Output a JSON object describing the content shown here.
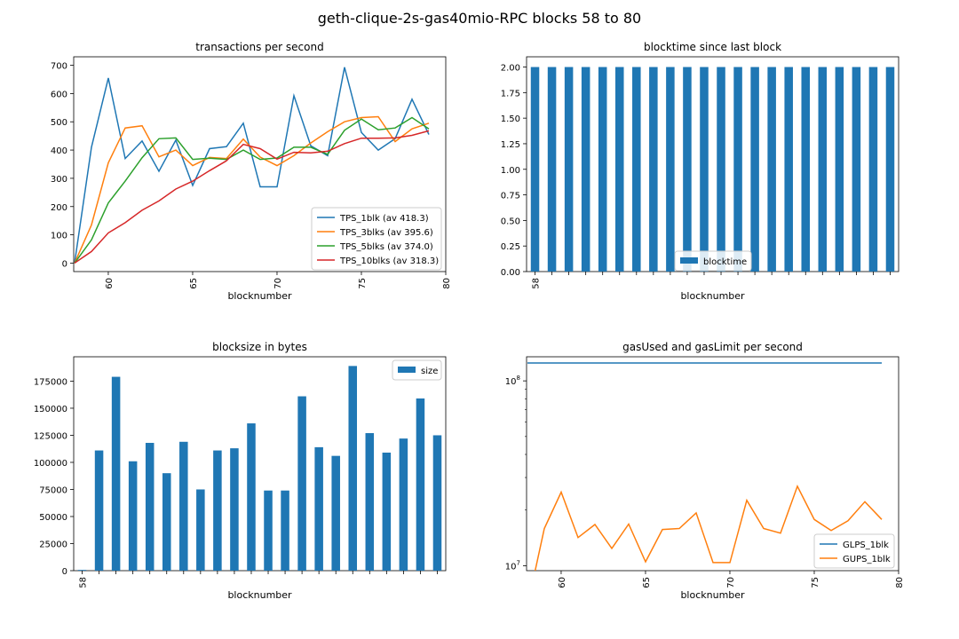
{
  "suptitle": "geth-clique-2s-gas40mio-RPC blocks 58 to 80",
  "chart_data": [
    {
      "type": "line",
      "title": "transactions per second",
      "xlabel": "blocknumber",
      "ylabel": "",
      "xlim": [
        57.95,
        80
      ],
      "ylim": [
        -30,
        730
      ],
      "xticks": [
        60,
        65,
        70,
        75,
        80
      ],
      "yticks": [
        0,
        100,
        200,
        300,
        400,
        500,
        600,
        700
      ],
      "x": [
        58,
        59,
        60,
        61,
        62,
        63,
        64,
        65,
        66,
        67,
        68,
        69,
        70,
        71,
        72,
        73,
        74,
        75,
        76,
        77,
        78,
        79
      ],
      "legend_position": "lower-right",
      "series": [
        {
          "name": "TPS_1blk (av 418.3)",
          "color": "#1f77b4",
          "values": [
            0,
            410,
            655,
            370,
            432,
            325,
            435,
            275,
            405,
            412,
            495,
            270,
            270,
            592,
            415,
            380,
            693,
            462,
            400,
            440,
            580,
            455
          ]
        },
        {
          "name": "TPS_3blks (av 395.6)",
          "color": "#ff7f0e",
          "values": [
            0,
            135,
            355,
            478,
            486,
            376,
            400,
            345,
            374,
            370,
            439,
            375,
            345,
            380,
            425,
            465,
            500,
            515,
            518,
            430,
            475,
            495
          ]
        },
        {
          "name": "TPS_5blks (av 374.0)",
          "color": "#2ca02c",
          "values": [
            0,
            82,
            213,
            290,
            373,
            440,
            443,
            367,
            371,
            367,
            400,
            367,
            372,
            410,
            410,
            385,
            470,
            510,
            472,
            478,
            515,
            475
          ]
        },
        {
          "name": "TPS_10blks (av 318.3)",
          "color": "#d62728",
          "values": [
            0,
            41,
            107,
            143,
            187,
            220,
            262,
            290,
            327,
            362,
            420,
            405,
            368,
            392,
            390,
            396,
            423,
            442,
            442,
            443,
            452,
            468
          ]
        }
      ]
    },
    {
      "type": "bar",
      "title": "blocktime since last block",
      "xlabel": "blocknumber",
      "ylabel": "",
      "ylim": [
        0,
        2.1
      ],
      "yticks": [
        0.0,
        0.25,
        0.5,
        0.75,
        1.0,
        1.25,
        1.5,
        1.75,
        2.0
      ],
      "ytick_labels": [
        "0.00",
        "0.25",
        "0.50",
        "0.75",
        "1.00",
        "1.25",
        "1.50",
        "1.75",
        "2.00"
      ],
      "categories": [
        "58",
        "",
        "",
        "",
        "",
        "",
        "",
        "",
        "",
        "",
        "",
        "",
        "",
        "",
        "",
        "",
        "",
        "",
        "",
        "",
        "",
        ""
      ],
      "legend_position": "lower-center",
      "series": [
        {
          "name": "blocktime",
          "color": "#1f77b4",
          "values": [
            2,
            2,
            2,
            2,
            2,
            2,
            2,
            2,
            2,
            2,
            2,
            2,
            2,
            2,
            2,
            2,
            2,
            2,
            2,
            2,
            2,
            2
          ]
        }
      ]
    },
    {
      "type": "bar",
      "title": "blocksize in bytes",
      "xlabel": "blocknumber",
      "ylabel": "",
      "ylim": [
        0,
        197500
      ],
      "yticks": [
        0,
        25000,
        50000,
        75000,
        100000,
        125000,
        150000,
        175000
      ],
      "categories": [
        "58",
        "",
        "",
        "",
        "",
        "",
        "",
        "",
        "",
        "",
        "",
        "",
        "",
        "",
        "",
        "",
        "",
        "",
        "",
        "",
        "",
        ""
      ],
      "legend_position": "upper-right",
      "series": [
        {
          "name": "size",
          "color": "#1f77b4",
          "values": [
            700,
            111000,
            179000,
            101000,
            118000,
            90000,
            119000,
            75000,
            111000,
            113000,
            136000,
            74000,
            74000,
            161000,
            114000,
            106000,
            189000,
            127000,
            109000,
            122000,
            159000,
            125000
          ]
        }
      ]
    },
    {
      "type": "line",
      "title": "gasUsed and gasLimit per second",
      "xlabel": "blocknumber",
      "ylabel": "",
      "yscale": "log",
      "xlim": [
        57.95,
        80
      ],
      "ylim": [
        9400000,
        135000000
      ],
      "xticks": [
        60,
        65,
        70,
        75,
        80
      ],
      "x": [
        58,
        59,
        60,
        61,
        62,
        63,
        64,
        65,
        66,
        67,
        68,
        69,
        70,
        71,
        72,
        73,
        74,
        75,
        76,
        77,
        78,
        79
      ],
      "legend_position": "lower-right",
      "series": [
        {
          "name": "GLPS_1blk",
          "color": "#1f77b4",
          "values": [
            125000000,
            125000000,
            125000000,
            125000000,
            125000000,
            125000000,
            125000000,
            125000000,
            125000000,
            125000000,
            125000000,
            125000000,
            125000000,
            125000000,
            125000000,
            125000000,
            125000000,
            125000000,
            125000000,
            125000000,
            125000000,
            125000000
          ]
        },
        {
          "name": "GUPS_1blk",
          "color": "#ff7f0e",
          "values": [
            0,
            15900000,
            25000000,
            14200000,
            16700000,
            12400000,
            16800000,
            10500000,
            15700000,
            15900000,
            19300000,
            10400000,
            10400000,
            22600000,
            15900000,
            15000000,
            26900000,
            17800000,
            15500000,
            17500000,
            22200000,
            17800000
          ]
        }
      ]
    }
  ]
}
